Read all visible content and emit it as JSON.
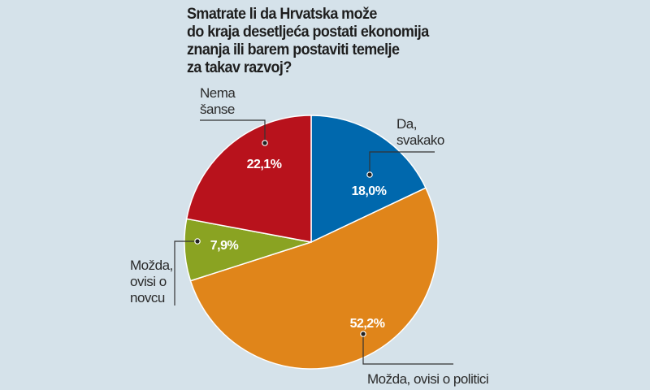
{
  "chart_data": {
    "type": "pie",
    "title": "Smatrate li da Hrvatska može do kraja desetljeća postati ekonomija znanja ili barem postaviti temelje za takav razvoj?",
    "title_lines": [
      "Smatrate li da Hrvatska može",
      "do kraja desetljeća postati ekonomija",
      "znanja ili barem postaviti temelje",
      "za takav razvoj?"
    ],
    "start_angle": "12 o'clock, clockwise",
    "slices": [
      {
        "label": "Da, svakako",
        "label_lines": [
          "Da,",
          "svakako"
        ],
        "value": 18.0,
        "display": "18,0%",
        "color": "#0068ad"
      },
      {
        "label": "Možda, ovisi o politici",
        "label_lines": [
          "Možda, ovisi o politici"
        ],
        "value": 52.2,
        "display": "52,2%",
        "color": "#e0851a"
      },
      {
        "label": "Možda, ovisi o novcu",
        "label_lines": [
          "Možda,",
          "ovisi o",
          "novcu"
        ],
        "value": 7.9,
        "display": "7,9%",
        "color": "#8aa322"
      },
      {
        "label": "Nema šanse",
        "label_lines": [
          "Nema",
          "šanse"
        ],
        "value": 22.1,
        "display": "22,1%",
        "color": "#b8121c"
      }
    ]
  }
}
